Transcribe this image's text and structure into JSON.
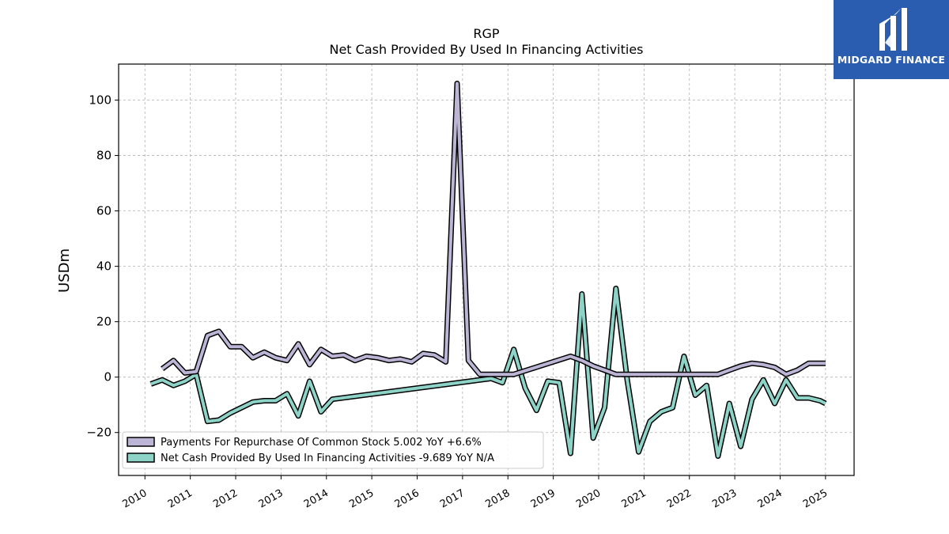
{
  "chart_data": {
    "type": "line",
    "title": "RGP",
    "subtitle": "Net Cash Provided By Used In Financing Activities",
    "ylabel": "USDm",
    "xlabel": "",
    "xlim": [
      2009.42,
      2025.63
    ],
    "ylim": [
      -35.5,
      113
    ],
    "x_ticks": [
      "2010",
      "2011",
      "2012",
      "2013",
      "2014",
      "2015",
      "2016",
      "2017",
      "2018",
      "2019",
      "2020",
      "2021",
      "2022",
      "2023",
      "2024",
      "2025"
    ],
    "y_ticks": [
      -20,
      0,
      20,
      40,
      60,
      80,
      100
    ],
    "y_tick_labels": [
      "−20",
      "0",
      "20",
      "40",
      "60",
      "80",
      "100"
    ],
    "grid": true,
    "legend_position": "lower-left",
    "series": [
      {
        "name": "Payments For Repurchase Of Common Stock  5.002 YoY +6.6%",
        "color": "#bcb5d6",
        "x": [
          2010.38,
          2010.63,
          2010.88,
          2011.13,
          2011.38,
          2011.63,
          2011.88,
          2012.13,
          2012.38,
          2012.63,
          2012.88,
          2013.13,
          2013.38,
          2013.63,
          2013.88,
          2014.13,
          2014.38,
          2014.63,
          2014.88,
          2015.13,
          2015.38,
          2015.63,
          2015.88,
          2016.13,
          2016.38,
          2016.63,
          2016.88,
          2017.13,
          2017.38,
          2017.63,
          2017.88,
          2018.13,
          2019.38,
          2019.63,
          2019.88,
          2020.13,
          2020.38,
          2020.63,
          2020.88,
          2021.13,
          2021.38,
          2021.63,
          2021.88,
          2022.13,
          2022.38,
          2022.63,
          2022.88,
          2023.13,
          2023.38,
          2023.63,
          2023.88,
          2024.13,
          2024.38,
          2024.63,
          2024.88,
          2025.0
        ],
        "values": [
          3,
          6,
          1.5,
          2,
          15,
          16.5,
          11,
          11,
          7,
          9,
          7,
          6,
          12,
          4.5,
          10,
          7.5,
          8,
          6,
          7.5,
          7,
          6,
          6.5,
          5.5,
          8.5,
          8,
          5.5,
          106,
          6,
          1,
          1,
          1,
          1,
          7.5,
          6,
          4,
          2.5,
          1,
          1,
          1,
          1,
          1,
          1,
          1,
          1,
          1,
          1,
          2.5,
          4,
          5,
          4.5,
          3.5,
          1,
          2.5,
          5,
          5,
          5
        ]
      },
      {
        "name": "Net Cash Provided By Used In Financing Activities  -9.689 YoY N/A",
        "color": "#8dd3c7",
        "x": [
          2010.13,
          2010.38,
          2010.63,
          2010.88,
          2011.13,
          2011.38,
          2011.63,
          2011.88,
          2012.13,
          2012.38,
          2012.63,
          2012.88,
          2013.13,
          2013.38,
          2013.63,
          2013.88,
          2014.13,
          2017.63,
          2017.88,
          2018.13,
          2018.38,
          2018.63,
          2018.88,
          2019.13,
          2019.38,
          2019.63,
          2019.88,
          2020.13,
          2020.38,
          2020.63,
          2020.88,
          2021.13,
          2021.38,
          2021.63,
          2021.88,
          2022.13,
          2022.38,
          2022.63,
          2022.88,
          2023.13,
          2023.38,
          2023.63,
          2023.88,
          2024.13,
          2024.38,
          2024.63,
          2024.88,
          2025.0
        ],
        "values": [
          -2.5,
          -1,
          -3,
          -1.5,
          1,
          -16,
          -15.5,
          -13,
          -11,
          -9,
          -8.5,
          -8.5,
          -6,
          -14,
          -1.5,
          -12.5,
          -8,
          -0.5,
          -2,
          10,
          -4,
          -12,
          -1.5,
          -2,
          -27.5,
          30,
          -22,
          -11,
          32,
          -1,
          -27,
          -16,
          -12.5,
          -11,
          7.5,
          -6.5,
          -3,
          -28.5,
          -9.5,
          -25,
          -8,
          -1,
          -9.5,
          -1,
          -7.5,
          -7.5,
          -8.5,
          -9.5
        ]
      }
    ]
  },
  "logo": {
    "text": "MIDGARD FINANCE"
  }
}
